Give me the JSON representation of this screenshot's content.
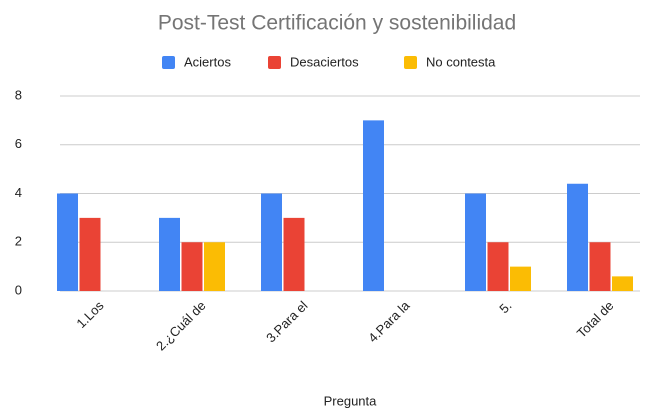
{
  "chart_data": {
    "type": "bar",
    "title": "Post-Test Certificación y sostenibilidad",
    "x_label": "Pregunta",
    "categories": [
      "1.Los",
      "2.¿Cuál de",
      "3.Para el",
      "4.Para la",
      "5.",
      "Total de"
    ],
    "series": [
      {
        "name": "Aciertos",
        "color": "#4285f4",
        "values": [
          4,
          3,
          4,
          7,
          4,
          4.4
        ]
      },
      {
        "name": "Desaciertos",
        "color": "#ea4335",
        "values": [
          3,
          2,
          3,
          0,
          2,
          2
        ]
      },
      {
        "name": "No contesta",
        "color": "#fbbc04",
        "values": [
          0,
          2,
          0,
          0,
          1,
          0.6
        ]
      }
    ],
    "ylim": [
      0,
      8
    ],
    "yticks": [
      0,
      2,
      4,
      6,
      8
    ],
    "grid": true,
    "legend": "top"
  }
}
